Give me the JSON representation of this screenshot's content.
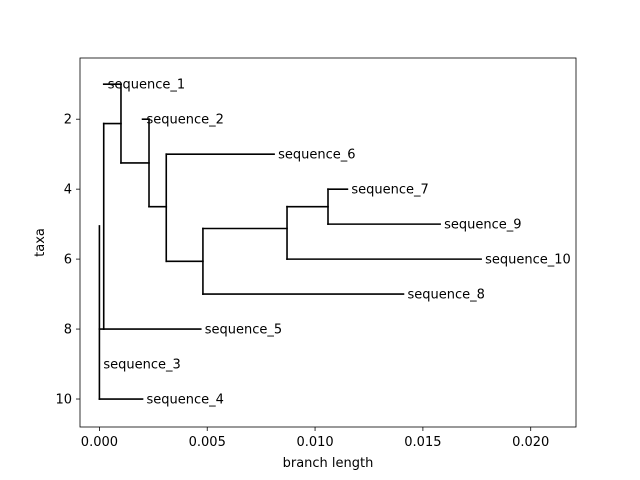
{
  "chart_data": {
    "type": "dendrogram",
    "xlabel": "branch length",
    "ylabel": "taxa",
    "xlim": [
      -0.0009,
      0.0221
    ],
    "ylim": [
      10.8,
      0.25
    ],
    "xticks": [
      0.0,
      0.005,
      0.01,
      0.015,
      0.02
    ],
    "xtick_labels": [
      "0.000",
      "0.005",
      "0.010",
      "0.015",
      "0.020"
    ],
    "yticks": [
      2,
      4,
      6,
      8,
      10
    ],
    "ytick_labels": [
      "2",
      "4",
      "6",
      "8",
      "10"
    ],
    "line_color": "#000000",
    "grid": false,
    "leaves": [
      {
        "name": "sequence_1",
        "y": 1,
        "x": 0.0002
      },
      {
        "name": "sequence_2",
        "y": 2,
        "x": 0.002
      },
      {
        "name": "sequence_6",
        "y": 3,
        "x": 0.0081
      },
      {
        "name": "sequence_7",
        "y": 4,
        "x": 0.0115
      },
      {
        "name": "sequence_9",
        "y": 5,
        "x": 0.0158
      },
      {
        "name": "sequence_10",
        "y": 6,
        "x": 0.0177
      },
      {
        "name": "sequence_8",
        "y": 7,
        "x": 0.0141
      },
      {
        "name": "sequence_5",
        "y": 8,
        "x": 0.0047
      },
      {
        "name": "sequence_3",
        "y": 9,
        "x": 0.0
      },
      {
        "name": "sequence_4",
        "y": 10,
        "x": 0.002
      }
    ],
    "nodes": [
      {
        "x": 0.0,
        "y_min": 5.05,
        "y_max": 10
      },
      {
        "x": 0.0002,
        "y_min": 2.125,
        "y_max": 8
      },
      {
        "x": 0.001,
        "y_min": 1,
        "y_max": 3.25
      },
      {
        "x": 0.0023,
        "y_min": 2,
        "y_max": 4.5
      },
      {
        "x": 0.0031,
        "y_min": 3,
        "y_max": 6.0625
      },
      {
        "x": 0.0048,
        "y_min": 5.125,
        "y_max": 7
      },
      {
        "x": 0.0087,
        "y_min": 4.5,
        "y_max": 6
      },
      {
        "x": 0.0106,
        "y_min": 4,
        "y_max": 5
      }
    ],
    "branches": [
      {
        "x0": 0.0,
        "x1": 0.0002,
        "y": 8
      },
      {
        "x0": 0.0,
        "x1": 0.0,
        "y": 9
      },
      {
        "x0": 0.0,
        "x1": 0.002,
        "y": 10
      },
      {
        "x0": 0.0002,
        "x1": 0.001,
        "y": 2.125
      },
      {
        "x0": 0.0002,
        "x1": 0.0047,
        "y": 8
      },
      {
        "x0": 0.001,
        "x1": 0.0002,
        "y": 1
      },
      {
        "x0": 0.001,
        "x1": 0.0023,
        "y": 3.25
      },
      {
        "x0": 0.0023,
        "x1": 0.002,
        "y": 2
      },
      {
        "x0": 0.0023,
        "x1": 0.0031,
        "y": 4.5
      },
      {
        "x0": 0.0031,
        "x1": 0.0081,
        "y": 3
      },
      {
        "x0": 0.0031,
        "x1": 0.0048,
        "y": 6.0625
      },
      {
        "x0": 0.0048,
        "x1": 0.0087,
        "y": 5.125
      },
      {
        "x0": 0.0048,
        "x1": 0.0141,
        "y": 7
      },
      {
        "x0": 0.0087,
        "x1": 0.0106,
        "y": 4.5
      },
      {
        "x0": 0.0087,
        "x1": 0.0177,
        "y": 6
      },
      {
        "x0": 0.0106,
        "x1": 0.0115,
        "y": 4
      },
      {
        "x0": 0.0106,
        "x1": 0.0158,
        "y": 5
      }
    ]
  }
}
